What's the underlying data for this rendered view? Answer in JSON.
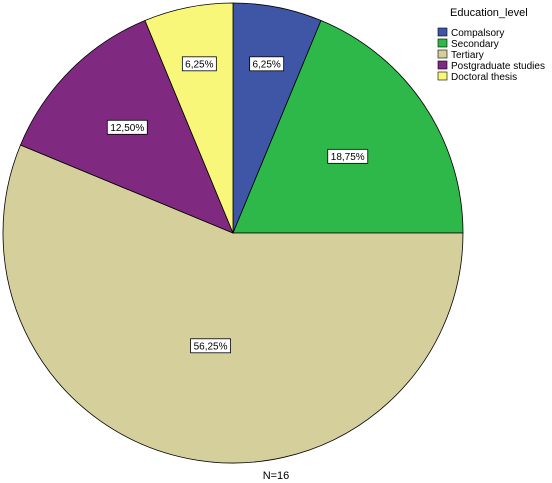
{
  "chart_data": {
    "type": "pie",
    "legend_title": "Education_level",
    "legend_position": "top-right",
    "categories": [
      "Compalsory",
      "Secondary",
      "Tertiary",
      "Postgraduate studies",
      "Doctoral thesis"
    ],
    "values": [
      6.25,
      18.75,
      56.25,
      12.5,
      6.25
    ],
    "labels": [
      "6,25%",
      "18,75%",
      "56,25%",
      "12,50%",
      "6,25%"
    ],
    "colors": [
      "#3f56a6",
      "#2fb84a",
      "#d5cf9c",
      "#7f2a80",
      "#f8f77a"
    ],
    "start_angle": "12 o'clock",
    "direction": "clockwise",
    "footer": "N=16"
  }
}
